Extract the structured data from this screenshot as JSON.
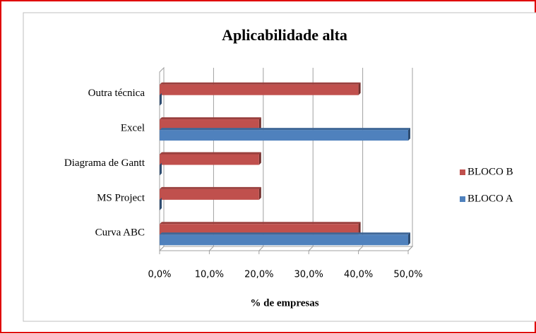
{
  "chart_data": {
    "type": "bar",
    "orientation": "horizontal",
    "title": "Aplicabilidade alta",
    "xlabel": "% de empresas",
    "categories": [
      "Curva ABC",
      "MS Project",
      "Diagrama de Gantt",
      "Excel",
      "Outra técnica"
    ],
    "series": [
      {
        "name": "BLOCO B",
        "color": "#c0504d",
        "values": [
          40,
          20,
          20,
          20,
          40
        ]
      },
      {
        "name": "BLOCO A",
        "color": "#4f81bd",
        "values": [
          50,
          0,
          0,
          50,
          0
        ]
      }
    ],
    "xlim": [
      0,
      50
    ],
    "xticks": [
      {
        "value": 0,
        "label": "0,0%"
      },
      {
        "value": 10,
        "label": "10,0%"
      },
      {
        "value": 20,
        "label": "20,0%"
      },
      {
        "value": 30,
        "label": "30,0%"
      },
      {
        "value": 40,
        "label": "40,0%"
      },
      {
        "value": 50,
        "label": "50,0%"
      }
    ],
    "grid": true,
    "legend": "right"
  }
}
